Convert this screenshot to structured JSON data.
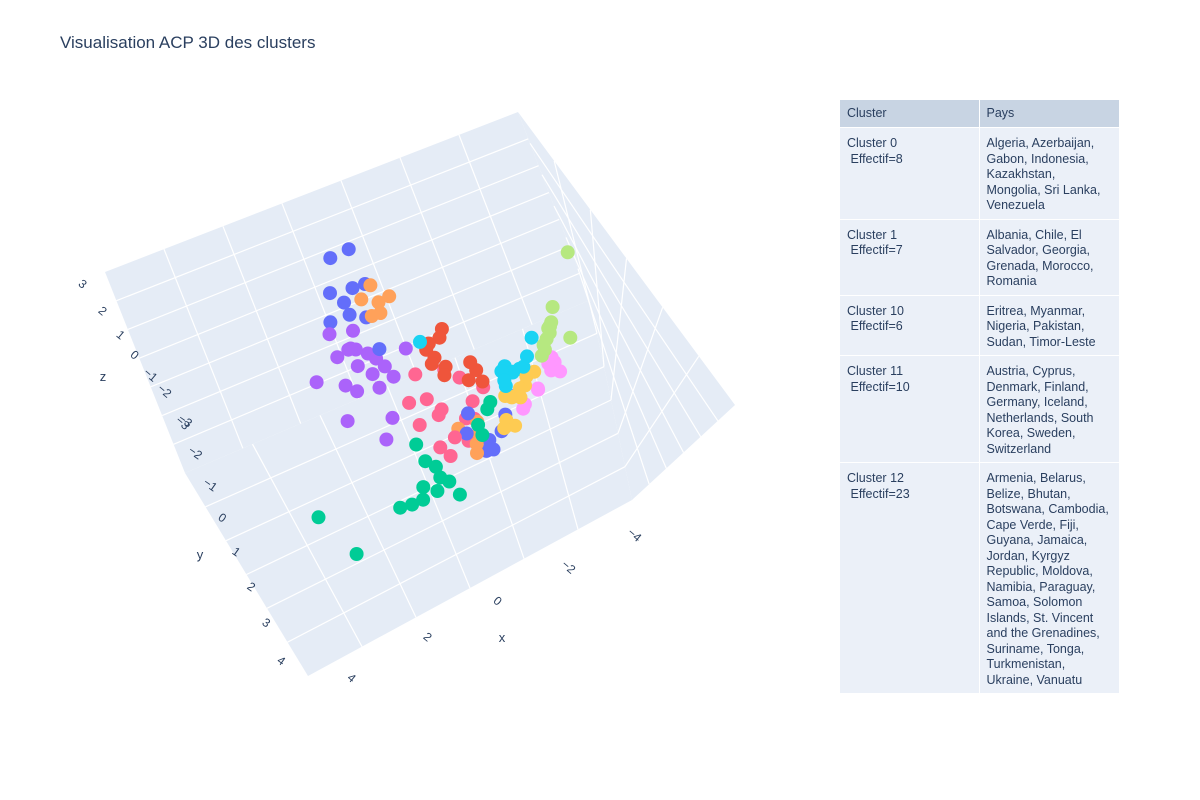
{
  "title": "Visualisation ACP 3D des clusters",
  "table": {
    "headers": [
      "Cluster",
      "Pays"
    ],
    "rows": [
      {
        "cluster": "Cluster 0",
        "effectif": "Effectif=8",
        "pays": "Algeria, Azerbaijan, Gabon, Indonesia, Kazakhstan, Mongolia, Sri Lanka, Venezuela"
      },
      {
        "cluster": "Cluster 1",
        "effectif": "Effectif=7",
        "pays": "Albania, Chile, El Salvador, Georgia, Grenada, Morocco, Romania"
      },
      {
        "cluster": "Cluster 10",
        "effectif": "Effectif=6",
        "pays": "Eritrea, Myanmar, Nigeria, Pakistan, Sudan, Timor-Leste"
      },
      {
        "cluster": "Cluster 11",
        "effectif": "Effectif=10",
        "pays": "Austria, Cyprus, Denmark, Finland, Germany, Iceland, Netherlands, South Korea, Sweden, Switzerland"
      },
      {
        "cluster": "Cluster 12",
        "effectif": "Effectif=23",
        "pays": "Armenia, Belarus, Belize, Bhutan, Botswana, Cambodia, Cape Verde, Fiji, Guyana, Jamaica, Jordan, Kyrgyz Republic, Moldova, Namibia, Paraguay, Samoa, Solomon Islands, St. Vincent and the Grenadines, Suriname, Tonga, Turkmenistan, Ukraine, Vanuatu"
      }
    ]
  },
  "chart_data": {
    "type": "scatter",
    "title": "Visualisation ACP 3D des clusters",
    "xlabel": "x",
    "ylabel": "y",
    "zlabel": "z",
    "x_ticks": [
      "−4",
      "−2",
      "0",
      "2",
      "4"
    ],
    "y_ticks": [
      "−3",
      "−2",
      "−1",
      "0",
      "1",
      "2",
      "3",
      "4"
    ],
    "z_ticks": [
      "3",
      "2",
      "1",
      "0",
      "−1",
      "−2",
      "−3"
    ],
    "colors": {
      "blue": "#636efa",
      "red": "#ef553b",
      "green": "#00cc96",
      "purple": "#ab63fa",
      "orange": "#ffa15a",
      "cyan": "#19d3f3",
      "pink": "#ff6692",
      "lime": "#b6e880",
      "magenta": "#ff97ff",
      "yellow": "#fecb52"
    },
    "series": [
      {
        "color": "lime",
        "points": [
          [
            -1.0,
            -3.2,
            2.6
          ],
          [
            -0.6,
            -2.7,
            0.9
          ],
          [
            -0.4,
            -2.6,
            0.5
          ],
          [
            -0.3,
            -2.5,
            0.4
          ],
          [
            -0.2,
            -2.5,
            0.3
          ],
          [
            -0.1,
            -2.4,
            0.2
          ],
          [
            0.0,
            -2.3,
            0.1
          ],
          [
            0.1,
            -2.3,
            0.0
          ],
          [
            0.2,
            -2.2,
            -0.1
          ],
          [
            -0.5,
            -2.6,
            0.2
          ],
          [
            -0.2,
            -2.5,
            0.6
          ],
          [
            -0.6,
            -3.1,
            -0.8
          ]
        ]
      },
      {
        "color": "magenta",
        "points": [
          [
            -0.3,
            -2.6,
            -1.0
          ],
          [
            -0.2,
            -2.5,
            -1.1
          ],
          [
            -0.4,
            -2.7,
            -1.4
          ],
          [
            -0.3,
            -2.6,
            -1.6
          ],
          [
            0.1,
            -2.2,
            -1.7
          ],
          [
            0.5,
            -1.8,
            -1.7
          ],
          [
            -0.7,
            -2.9,
            -2.3
          ],
          [
            0.4,
            -1.8,
            -2.0
          ],
          [
            -0.7,
            -2.4,
            -2.7
          ]
        ]
      },
      {
        "color": "blue",
        "points": [
          [
            -0.5,
            -1.8,
            -2.3
          ],
          [
            0.0,
            -1.5,
            -2.4
          ],
          [
            0.5,
            -1.3,
            -2.5
          ],
          [
            1.0,
            -1.0,
            -2.6
          ],
          [
            0.9,
            -0.9,
            -2.2
          ],
          [
            0.4,
            -1.0,
            -3.2
          ],
          [
            -3.0,
            0.5,
            2.9
          ],
          [
            -3.3,
            0.8,
            2.5
          ],
          [
            -2.5,
            0.5,
            2.0
          ],
          [
            -2.7,
            0.7,
            1.8
          ],
          [
            -2.8,
            0.9,
            1.3
          ],
          [
            -2.2,
            0.7,
            1.1
          ],
          [
            -3.0,
            1.2,
            0.6
          ],
          [
            -0.8,
            1.0,
            1.2
          ],
          [
            0.7,
            -0.4,
            -0.9
          ],
          [
            1.0,
            -0.3,
            -1.4
          ],
          [
            -2.9,
            1.1,
            1.7
          ],
          [
            -2.6,
            0.9,
            1.0
          ]
        ]
      },
      {
        "color": "cyan",
        "points": [
          [
            0.5,
            -1.8,
            1.3
          ],
          [
            0.8,
            -1.6,
            0.9
          ],
          [
            0.9,
            -1.5,
            0.6
          ],
          [
            0.8,
            -1.3,
            0.4
          ],
          [
            0.7,
            -1.2,
            0.3
          ],
          [
            1.0,
            -1.1,
            0.1
          ],
          [
            0.7,
            -1.5,
            0.3
          ],
          [
            1.1,
            -1.0,
            0.5
          ],
          [
            0.6,
            -1.4,
            0.1
          ],
          [
            -0.6,
            0.2,
            1.2
          ],
          [
            0.9,
            -1.0,
            0.7
          ],
          [
            0.6,
            -1.2,
            0.5
          ]
        ]
      },
      {
        "color": "yellow",
        "points": [
          [
            0.6,
            -1.9,
            -0.2
          ],
          [
            0.9,
            -1.6,
            -0.3
          ],
          [
            1.2,
            -1.4,
            -0.4
          ],
          [
            1.0,
            -1.3,
            -0.5
          ],
          [
            0.8,
            -1.2,
            -0.6
          ],
          [
            0.9,
            -1.6,
            0.1
          ],
          [
            1.1,
            -1.4,
            -0.1
          ],
          [
            0.7,
            -1.4,
            -0.9
          ],
          [
            1.3,
            -1.1,
            -1.1
          ],
          [
            1.5,
            -1.0,
            -1.2
          ],
          [
            1.2,
            -1.2,
            -1.5
          ],
          [
            1.4,
            -1.3,
            -1.4
          ]
        ]
      },
      {
        "color": "orange",
        "points": [
          [
            -1.3,
            0.9,
            2.0
          ],
          [
            -2.2,
            0.5,
            2.2
          ],
          [
            -1.8,
            0.3,
            2.0
          ],
          [
            -1.9,
            0.5,
            1.8
          ],
          [
            -1.6,
            0.6,
            1.7
          ],
          [
            -2.3,
            0.7,
            1.7
          ],
          [
            0.8,
            -0.6,
            -1.3
          ],
          [
            1.0,
            -0.6,
            -1.6
          ],
          [
            1.2,
            -0.5,
            -1.8
          ],
          [
            1.3,
            -0.5,
            -2.1
          ],
          [
            0.7,
            -0.2,
            -1.4
          ]
        ]
      },
      {
        "color": "red",
        "points": [
          [
            -0.8,
            -0.3,
            0.9
          ],
          [
            -0.9,
            -0.1,
            0.7
          ],
          [
            -0.8,
            0.0,
            0.6
          ],
          [
            -0.6,
            -0.1,
            0.4
          ],
          [
            -0.5,
            0.0,
            0.3
          ],
          [
            -0.5,
            -0.3,
            0.0
          ],
          [
            -0.3,
            -0.2,
            -0.1
          ],
          [
            0.0,
            -0.8,
            0.0
          ],
          [
            0.1,
            -0.6,
            -0.2
          ],
          [
            0.4,
            -0.8,
            -0.1
          ],
          [
            -0.1,
            -0.7,
            0.3
          ],
          [
            -0.9,
            -0.4,
            1.1
          ]
        ]
      },
      {
        "color": "pink",
        "points": [
          [
            -0.6,
            -0.3,
            -0.2
          ],
          [
            -0.2,
            -0.5,
            -0.3
          ],
          [
            0.2,
            -0.9,
            -0.6
          ],
          [
            0.4,
            -0.6,
            -0.8
          ],
          [
            0.6,
            -0.4,
            -1.2
          ],
          [
            0.8,
            -0.1,
            -1.6
          ],
          [
            0.3,
            -0.7,
            -1.7
          ],
          [
            0.9,
            0.0,
            -2.2
          ],
          [
            0.6,
            -0.5,
            -2.2
          ],
          [
            -0.2,
            0.4,
            -1.6
          ],
          [
            0.1,
            0.0,
            -1.0
          ],
          [
            -0.3,
            0.2,
            -0.8
          ],
          [
            -0.1,
            0.0,
            -1.4
          ],
          [
            -0.7,
            0.3,
            -0.1
          ],
          [
            0.4,
            0.1,
            -2.2
          ],
          [
            -0.6,
            0.5,
            -1.0
          ]
        ]
      },
      {
        "color": "purple",
        "points": [
          [
            -2.6,
            0.9,
            0.4
          ],
          [
            -2.9,
            1.3,
            0.3
          ],
          [
            -2.3,
            1.0,
            0.0
          ],
          [
            -2.5,
            1.1,
            -0.1
          ],
          [
            -2.2,
            0.8,
            -0.2
          ],
          [
            -2.0,
            0.7,
            -0.3
          ],
          [
            -2.7,
            1.3,
            -0.4
          ],
          [
            -1.8,
            0.6,
            -0.5
          ],
          [
            -2.4,
            1.0,
            -0.7
          ],
          [
            -1.6,
            0.5,
            -0.8
          ],
          [
            -2.1,
            0.8,
            -0.9
          ],
          [
            -3.3,
            1.7,
            -1.5
          ],
          [
            -2.5,
            1.3,
            -1.3
          ],
          [
            -2.0,
            1.2,
            -1.2
          ],
          [
            -1.3,
            0.7,
            -2.0
          ],
          [
            -1.2,
            0.9,
            -2.6
          ],
          [
            -2.0,
            1.5,
            -2.1
          ],
          [
            -0.9,
            0.4,
            0.8
          ],
          [
            -1.7,
            0.8,
            -1.1
          ],
          [
            -2.3,
            1.1,
            0.1
          ]
        ]
      },
      {
        "color": "green",
        "points": [
          [
            1.4,
            -0.6,
            0.1
          ],
          [
            1.3,
            -0.6,
            -0.3
          ],
          [
            1.6,
            -0.3,
            -0.5
          ],
          [
            1.7,
            -0.4,
            -0.9
          ],
          [
            0.2,
            0.6,
            -1.9
          ],
          [
            0.6,
            0.5,
            -2.3
          ],
          [
            0.8,
            0.3,
            -2.5
          ],
          [
            1.2,
            0.3,
            -2.6
          ],
          [
            1.4,
            0.4,
            -2.9
          ],
          [
            0.9,
            0.6,
            -3.0
          ],
          [
            1.3,
            0.7,
            -3.1
          ],
          [
            1.1,
            0.9,
            -3.3
          ],
          [
            0.8,
            1.1,
            -3.5
          ],
          [
            1.6,
            0.2,
            -2.5
          ],
          [
            2.2,
            0.1,
            -2.6
          ],
          [
            1.5,
            2.3,
            -3.8
          ],
          [
            -0.9,
            2.6,
            -4.0
          ]
        ]
      }
    ]
  }
}
